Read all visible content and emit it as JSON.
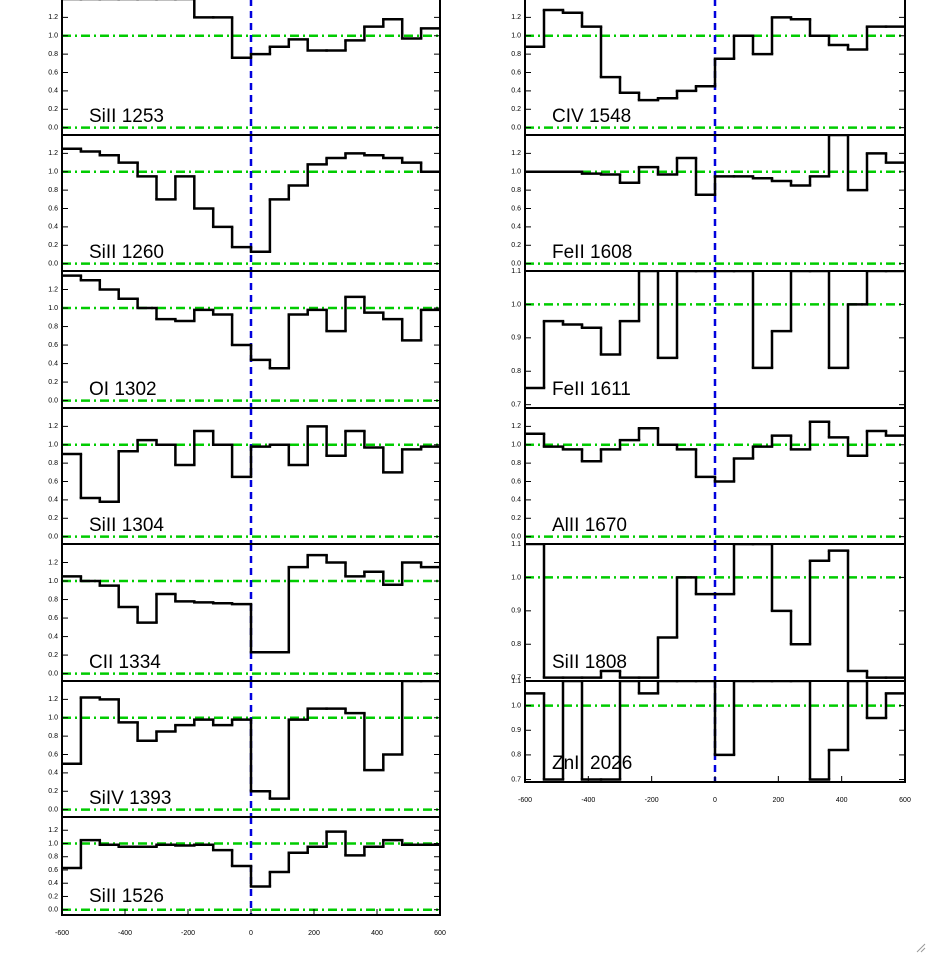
{
  "chart_data": [
    {
      "type": "line",
      "step": true,
      "label": "SiII 1253",
      "color": "#000000",
      "xlim": [
        -600,
        600
      ],
      "x": [
        -570,
        -510,
        -450,
        -390,
        -330,
        -270,
        -210,
        -150,
        -90,
        -30,
        30,
        90,
        150,
        210,
        270,
        330,
        390,
        450,
        510,
        570
      ],
      "values": [
        1.4,
        1.4,
        1.4,
        1.4,
        1.4,
        1.4,
        1.4,
        1.2,
        1.2,
        0.76,
        0.8,
        0.88,
        0.96,
        0.84,
        0.84,
        0.95,
        1.1,
        1.18,
        0.97,
        1.08
      ],
      "ylim": [
        -0.08,
        1.4
      ],
      "yticks": [
        {
          "value": 0,
          "label": "0.0"
        },
        0.2,
        0.4,
        0.6,
        0.8,
        {
          "value": 1,
          "label": "1.0"
        },
        1.2
      ],
      "reference_lines": {
        "y": [
          0,
          1
        ],
        "color": "#00cc00"
      },
      "marker_line": {
        "x": 0,
        "color": "#0000dd"
      }
    },
    {
      "type": "line",
      "step": true,
      "label": "SiII 1260",
      "color": "#000000",
      "xlim": [
        -600,
        600
      ],
      "x": [
        -570,
        -510,
        -450,
        -390,
        -330,
        -270,
        -210,
        -150,
        -90,
        -30,
        30,
        90,
        150,
        210,
        270,
        330,
        390,
        450,
        510,
        570
      ],
      "values": [
        1.25,
        1.22,
        1.18,
        1.1,
        0.95,
        0.7,
        0.95,
        0.6,
        0.4,
        0.18,
        0.13,
        0.7,
        0.85,
        1.08,
        1.15,
        1.2,
        1.18,
        1.15,
        1.1,
        1.0
      ],
      "ylim": [
        -0.08,
        1.4
      ],
      "yticks": [
        {
          "value": 0,
          "label": "0.0"
        },
        0.2,
        0.4,
        0.6,
        0.8,
        {
          "value": 1,
          "label": "1.0"
        },
        1.2
      ],
      "reference_lines": {
        "y": [
          0,
          1
        ],
        "color": "#00cc00"
      },
      "marker_line": {
        "x": 0,
        "color": "#0000dd"
      }
    },
    {
      "type": "line",
      "step": true,
      "label": "OI 1302",
      "color": "#000000",
      "xlim": [
        -600,
        600
      ],
      "x": [
        -570,
        -510,
        -450,
        -390,
        -330,
        -270,
        -210,
        -150,
        -90,
        -30,
        30,
        90,
        150,
        210,
        270,
        330,
        390,
        450,
        510,
        570
      ],
      "values": [
        1.35,
        1.3,
        1.2,
        1.1,
        1.0,
        0.88,
        0.86,
        0.98,
        0.93,
        0.6,
        0.44,
        0.35,
        0.93,
        0.98,
        0.75,
        1.12,
        0.95,
        0.88,
        0.65,
        0.98
      ],
      "ylim": [
        -0.08,
        1.4
      ],
      "yticks": [
        {
          "value": 0,
          "label": "0.0"
        },
        0.2,
        0.4,
        0.6,
        0.8,
        {
          "value": 1,
          "label": "1.0"
        },
        1.2
      ],
      "reference_lines": {
        "y": [
          0,
          1
        ],
        "color": "#00cc00"
      },
      "marker_line": {
        "x": 0,
        "color": "#0000dd"
      }
    },
    {
      "type": "line",
      "step": true,
      "label": "SiII 1304",
      "color": "#000000",
      "xlim": [
        -600,
        600
      ],
      "x": [
        -570,
        -510,
        -450,
        -390,
        -330,
        -270,
        -210,
        -150,
        -90,
        -30,
        30,
        90,
        150,
        210,
        270,
        330,
        390,
        450,
        510,
        570
      ],
      "values": [
        0.9,
        0.42,
        0.38,
        0.93,
        1.05,
        1.0,
        0.78,
        1.15,
        1.0,
        0.65,
        0.98,
        1.0,
        0.78,
        1.2,
        0.88,
        1.15,
        0.97,
        0.7,
        0.95,
        0.98
      ],
      "ylim": [
        -0.08,
        1.4
      ],
      "yticks": [
        {
          "value": 0,
          "label": "0.0"
        },
        0.2,
        0.4,
        0.6,
        0.8,
        {
          "value": 1,
          "label": "1.0"
        },
        1.2
      ],
      "reference_lines": {
        "y": [
          0,
          1
        ],
        "color": "#00cc00"
      },
      "marker_line": {
        "x": 0,
        "color": "#0000dd"
      }
    },
    {
      "type": "line",
      "step": true,
      "label": "CII 1334",
      "color": "#000000",
      "xlim": [
        -600,
        600
      ],
      "x": [
        -570,
        -510,
        -450,
        -390,
        -330,
        -270,
        -210,
        -150,
        -90,
        -30,
        30,
        90,
        150,
        210,
        270,
        330,
        390,
        450,
        510,
        570
      ],
      "values": [
        1.05,
        1.0,
        0.95,
        0.72,
        0.55,
        0.86,
        0.78,
        0.77,
        0.76,
        0.75,
        0.23,
        0.23,
        1.15,
        1.28,
        1.2,
        1.05,
        1.1,
        0.96,
        1.2,
        1.15
      ],
      "ylim": [
        -0.08,
        1.4
      ],
      "yticks": [
        {
          "value": 0,
          "label": "0.0"
        },
        0.2,
        0.4,
        0.6,
        0.8,
        {
          "value": 1,
          "label": "1.0"
        },
        1.2
      ],
      "reference_lines": {
        "y": [
          0,
          1
        ],
        "color": "#00cc00"
      },
      "marker_line": {
        "x": 0,
        "color": "#0000dd"
      }
    },
    {
      "type": "line",
      "step": true,
      "label": "SiIV 1393",
      "color": "#000000",
      "xlim": [
        -600,
        600
      ],
      "x": [
        -570,
        -510,
        -450,
        -390,
        -330,
        -270,
        -210,
        -150,
        -90,
        -30,
        30,
        90,
        150,
        210,
        270,
        330,
        390,
        450,
        510,
        570
      ],
      "values": [
        0.5,
        1.22,
        1.2,
        0.95,
        0.75,
        0.85,
        0.92,
        0.98,
        0.92,
        0.98,
        0.2,
        0.12,
        0.98,
        1.1,
        1.1,
        1.05,
        0.43,
        0.6,
        1.4,
        1.4
      ],
      "ylim": [
        -0.08,
        1.4
      ],
      "yticks": [
        {
          "value": 0,
          "label": "0.0"
        },
        0.2,
        0.4,
        0.6,
        0.8,
        {
          "value": 1,
          "label": "1.0"
        },
        1.2
      ],
      "reference_lines": {
        "y": [
          0,
          1
        ],
        "color": "#00cc00"
      },
      "marker_line": {
        "x": 0,
        "color": "#0000dd"
      }
    },
    {
      "type": "line",
      "step": true,
      "label": "SiII 1526",
      "color": "#000000",
      "xlim": [
        -600,
        600
      ],
      "xticks": [
        -600,
        -400,
        -200,
        0,
        200,
        400,
        600
      ],
      "x": [
        -570,
        -510,
        -450,
        -390,
        -330,
        -270,
        -210,
        -150,
        -90,
        -30,
        30,
        90,
        150,
        210,
        270,
        330,
        390,
        450,
        510,
        570
      ],
      "values": [
        0.63,
        1.05,
        0.98,
        0.95,
        0.95,
        0.98,
        0.97,
        0.98,
        0.9,
        0.66,
        0.35,
        0.57,
        0.86,
        0.95,
        1.18,
        0.82,
        0.95,
        1.05,
        0.98,
        0.98
      ],
      "ylim": [
        -0.08,
        1.4
      ],
      "yticks": [
        {
          "value": 0,
          "label": "0.0"
        },
        0.2,
        0.4,
        0.6,
        0.8,
        {
          "value": 1,
          "label": "1.0"
        },
        1.2
      ],
      "reference_lines": {
        "y": [
          0,
          1
        ],
        "color": "#00cc00"
      },
      "marker_line": {
        "x": 0,
        "color": "#0000dd"
      }
    },
    {
      "type": "line",
      "step": true,
      "label": "CIV 1548",
      "color": "#000000",
      "xlim": [
        -600,
        600
      ],
      "x": [
        -570,
        -510,
        -450,
        -390,
        -330,
        -270,
        -210,
        -150,
        -90,
        -30,
        30,
        90,
        150,
        210,
        270,
        330,
        390,
        450,
        510,
        570
      ],
      "values": [
        0.88,
        1.28,
        1.25,
        1.1,
        0.55,
        0.38,
        0.3,
        0.32,
        0.4,
        0.45,
        0.75,
        1.0,
        0.8,
        1.2,
        1.18,
        1.0,
        0.9,
        0.85,
        1.1,
        1.1
      ],
      "ylim": [
        -0.08,
        1.4
      ],
      "yticks": [
        {
          "value": 0,
          "label": "0.0"
        },
        0.2,
        0.4,
        0.6,
        0.8,
        {
          "value": 1,
          "label": "1.0"
        },
        1.2
      ],
      "reference_lines": {
        "y": [
          0,
          1
        ],
        "color": "#00cc00"
      },
      "marker_line": {
        "x": 0,
        "color": "#0000dd"
      }
    },
    {
      "type": "line",
      "step": true,
      "label": "FeII 1608",
      "color": "#000000",
      "xlim": [
        -600,
        600
      ],
      "x": [
        -570,
        -510,
        -450,
        -390,
        -330,
        -270,
        -210,
        -150,
        -90,
        -30,
        30,
        90,
        150,
        210,
        270,
        330,
        390,
        450,
        510,
        570
      ],
      "values": [
        1.0,
        1.0,
        1.0,
        0.98,
        0.97,
        0.88,
        1.05,
        0.97,
        1.15,
        0.75,
        0.95,
        0.95,
        0.93,
        0.9,
        0.85,
        0.95,
        1.4,
        0.8,
        1.2,
        1.1
      ],
      "ylim": [
        -0.08,
        1.4
      ],
      "yticks": [
        {
          "value": 0,
          "label": "0.0"
        },
        0.2,
        0.4,
        0.6,
        0.8,
        {
          "value": 1,
          "label": "1.0"
        },
        1.2
      ],
      "reference_lines": {
        "y": [
          0,
          1
        ],
        "color": "#00cc00"
      },
      "marker_line": {
        "x": 0,
        "color": "#0000dd"
      }
    },
    {
      "type": "line",
      "step": true,
      "label": "FeII 1611",
      "color": "#000000",
      "xlim": [
        -600,
        600
      ],
      "x": [
        -570,
        -510,
        -450,
        -390,
        -330,
        -270,
        -210,
        -150,
        -90,
        -30,
        30,
        90,
        150,
        210,
        270,
        330,
        390,
        450,
        510,
        570
      ],
      "values": [
        0.75,
        0.95,
        0.94,
        0.93,
        0.85,
        0.95,
        1.1,
        0.84,
        1.1,
        1.1,
        1.1,
        1.1,
        0.81,
        0.92,
        1.1,
        1.1,
        0.81,
        1.0,
        1.1,
        1.1
      ],
      "ylim": [
        0.69,
        1.1
      ],
      "yticks": [
        0.7,
        0.8,
        0.9,
        {
          "value": 1,
          "label": "1.0"
        },
        1.1
      ],
      "reference_lines": {
        "y": [
          1
        ],
        "color": "#00cc00"
      },
      "marker_line": {
        "x": 0,
        "color": "#0000dd"
      }
    },
    {
      "type": "line",
      "step": true,
      "label": "AlII 1670",
      "color": "#000000",
      "xlim": [
        -600,
        600
      ],
      "x": [
        -570,
        -510,
        -450,
        -390,
        -330,
        -270,
        -210,
        -150,
        -90,
        -30,
        30,
        90,
        150,
        210,
        270,
        330,
        390,
        450,
        510,
        570
      ],
      "values": [
        1.12,
        0.98,
        0.95,
        0.82,
        0.95,
        1.05,
        1.18,
        1.0,
        0.95,
        0.65,
        0.6,
        0.85,
        0.98,
        1.1,
        0.95,
        1.25,
        1.08,
        0.88,
        1.15,
        1.1
      ],
      "ylim": [
        -0.08,
        1.4
      ],
      "yticks": [
        {
          "value": 0,
          "label": "0.0"
        },
        0.2,
        0.4,
        0.6,
        0.8,
        {
          "value": 1,
          "label": "1.0"
        },
        1.2
      ],
      "reference_lines": {
        "y": [
          0,
          1
        ],
        "color": "#00cc00"
      },
      "marker_line": {
        "x": 0,
        "color": "#0000dd"
      }
    },
    {
      "type": "line",
      "step": true,
      "label": "SiII 1808",
      "color": "#000000",
      "xlim": [
        -600,
        600
      ],
      "x": [
        -570,
        -510,
        -450,
        -390,
        -330,
        -270,
        -210,
        -150,
        -90,
        -30,
        30,
        90,
        150,
        210,
        270,
        330,
        390,
        450,
        510,
        570
      ],
      "values": [
        1.1,
        0.7,
        0.7,
        0.7,
        0.72,
        0.7,
        0.7,
        0.82,
        1.0,
        0.95,
        0.95,
        1.1,
        1.1,
        0.9,
        0.8,
        1.05,
        1.08,
        0.72,
        0.7,
        0.7
      ],
      "ylim": [
        0.69,
        1.1
      ],
      "yticks": [
        0.7,
        0.8,
        0.9,
        {
          "value": 1,
          "label": "1.0"
        },
        1.1
      ],
      "reference_lines": {
        "y": [
          1
        ],
        "color": "#00cc00"
      },
      "marker_line": {
        "x": 0,
        "color": "#0000dd"
      }
    },
    {
      "type": "line",
      "step": true,
      "label": "ZnII 2026",
      "color": "#000000",
      "xlim": [
        -600,
        600
      ],
      "xticks": [
        -600,
        -400,
        -200,
        0,
        200,
        400,
        600
      ],
      "x": [
        -570,
        -510,
        -450,
        -390,
        -330,
        -270,
        -210,
        -150,
        -90,
        -30,
        30,
        90,
        150,
        210,
        270,
        330,
        390,
        450,
        510,
        570
      ],
      "values": [
        1.05,
        0.7,
        1.1,
        0.7,
        0.7,
        1.1,
        1.05,
        1.1,
        1.1,
        1.1,
        0.8,
        1.1,
        1.1,
        1.1,
        1.1,
        0.7,
        0.82,
        1.1,
        0.95,
        1.05
      ],
      "ylim": [
        0.69,
        1.1
      ],
      "yticks": [
        0.7,
        0.8,
        0.9,
        {
          "value": 1,
          "label": "1.0"
        },
        1.1
      ],
      "reference_lines": {
        "y": [
          1
        ],
        "color": "#00cc00"
      },
      "marker_line": {
        "x": 0,
        "color": "#0000dd"
      }
    }
  ]
}
